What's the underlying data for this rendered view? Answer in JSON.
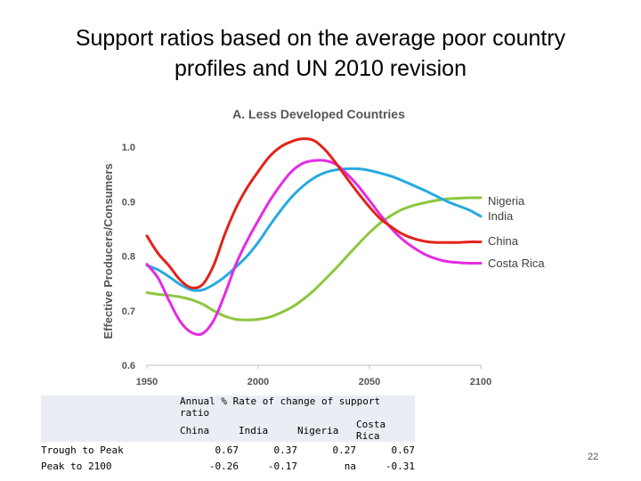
{
  "slide": {
    "title_line1": "Support ratios based on the average poor country",
    "title_line2": "profiles and UN 2010 revision",
    "page_number": "22"
  },
  "chart_data": {
    "type": "line",
    "title": "A.  Less Developed Countries",
    "xlabel": "",
    "ylabel": "Effective Producers/Consumers",
    "xlim": [
      1950,
      2100
    ],
    "ylim": [
      0.6,
      1.0
    ],
    "x_ticks": [
      "1950",
      "2000",
      "2050",
      "2100"
    ],
    "y_ticks": [
      "0.6",
      "0.7",
      "0.8",
      "0.9",
      "1.0"
    ],
    "grid": false,
    "legend": "line-end labels",
    "series": [
      {
        "name": "China",
        "color": "#e2231a",
        "points": [
          [
            1950,
            0.837
          ],
          [
            1955,
            0.805
          ],
          [
            1960,
            0.782
          ],
          [
            1965,
            0.756
          ],
          [
            1970,
            0.742
          ],
          [
            1975,
            0.748
          ],
          [
            1980,
            0.783
          ],
          [
            1985,
            0.84
          ],
          [
            1990,
            0.888
          ],
          [
            1995,
            0.925
          ],
          [
            2000,
            0.955
          ],
          [
            2005,
            0.982
          ],
          [
            2010,
            1.0
          ],
          [
            2015,
            1.01
          ],
          [
            2020,
            1.015
          ],
          [
            2025,
            1.012
          ],
          [
            2030,
            0.995
          ],
          [
            2035,
            0.97
          ],
          [
            2040,
            0.942
          ],
          [
            2045,
            0.915
          ],
          [
            2050,
            0.89
          ],
          [
            2055,
            0.868
          ],
          [
            2060,
            0.853
          ],
          [
            2065,
            0.84
          ],
          [
            2070,
            0.832
          ],
          [
            2075,
            0.827
          ],
          [
            2080,
            0.825
          ],
          [
            2085,
            0.825
          ],
          [
            2090,
            0.825
          ],
          [
            2095,
            0.826
          ],
          [
            2100,
            0.826
          ]
        ]
      },
      {
        "name": "India",
        "color": "#27aae1",
        "points": [
          [
            1950,
            0.783
          ],
          [
            1955,
            0.775
          ],
          [
            1960,
            0.762
          ],
          [
            1965,
            0.748
          ],
          [
            1970,
            0.738
          ],
          [
            1975,
            0.738
          ],
          [
            1980,
            0.748
          ],
          [
            1985,
            0.762
          ],
          [
            1990,
            0.78
          ],
          [
            1995,
            0.8
          ],
          [
            2000,
            0.825
          ],
          [
            2005,
            0.855
          ],
          [
            2010,
            0.883
          ],
          [
            2015,
            0.908
          ],
          [
            2020,
            0.928
          ],
          [
            2025,
            0.943
          ],
          [
            2030,
            0.953
          ],
          [
            2035,
            0.958
          ],
          [
            2040,
            0.96
          ],
          [
            2045,
            0.96
          ],
          [
            2050,
            0.957
          ],
          [
            2055,
            0.952
          ],
          [
            2060,
            0.946
          ],
          [
            2065,
            0.938
          ],
          [
            2070,
            0.929
          ],
          [
            2075,
            0.92
          ],
          [
            2080,
            0.91
          ],
          [
            2085,
            0.9
          ],
          [
            2090,
            0.892
          ],
          [
            2095,
            0.884
          ],
          [
            2100,
            0.873
          ]
        ]
      },
      {
        "name": "Nigeria",
        "color": "#8dc63f",
        "points": [
          [
            1950,
            0.733
          ],
          [
            1955,
            0.73
          ],
          [
            1960,
            0.728
          ],
          [
            1965,
            0.725
          ],
          [
            1970,
            0.72
          ],
          [
            1975,
            0.712
          ],
          [
            1980,
            0.7
          ],
          [
            1985,
            0.69
          ],
          [
            1990,
            0.684
          ],
          [
            1995,
            0.683
          ],
          [
            2000,
            0.684
          ],
          [
            2005,
            0.688
          ],
          [
            2010,
            0.696
          ],
          [
            2015,
            0.706
          ],
          [
            2020,
            0.72
          ],
          [
            2025,
            0.737
          ],
          [
            2030,
            0.757
          ],
          [
            2035,
            0.778
          ],
          [
            2040,
            0.8
          ],
          [
            2045,
            0.822
          ],
          [
            2050,
            0.843
          ],
          [
            2055,
            0.861
          ],
          [
            2060,
            0.875
          ],
          [
            2065,
            0.886
          ],
          [
            2070,
            0.893
          ],
          [
            2075,
            0.898
          ],
          [
            2080,
            0.902
          ],
          [
            2085,
            0.905
          ],
          [
            2090,
            0.906
          ],
          [
            2095,
            0.907
          ],
          [
            2100,
            0.907
          ]
        ]
      },
      {
        "name": "Costa Rica",
        "color": "#e52ae5",
        "points": [
          [
            1950,
            0.785
          ],
          [
            1955,
            0.76
          ],
          [
            1960,
            0.718
          ],
          [
            1965,
            0.68
          ],
          [
            1970,
            0.66
          ],
          [
            1975,
            0.658
          ],
          [
            1980,
            0.682
          ],
          [
            1985,
            0.73
          ],
          [
            1990,
            0.785
          ],
          [
            1995,
            0.828
          ],
          [
            2000,
            0.865
          ],
          [
            2005,
            0.9
          ],
          [
            2010,
            0.93
          ],
          [
            2015,
            0.955
          ],
          [
            2020,
            0.97
          ],
          [
            2025,
            0.975
          ],
          [
            2030,
            0.975
          ],
          [
            2035,
            0.968
          ],
          [
            2040,
            0.95
          ],
          [
            2045,
            0.928
          ],
          [
            2050,
            0.902
          ],
          [
            2055,
            0.875
          ],
          [
            2060,
            0.85
          ],
          [
            2065,
            0.83
          ],
          [
            2070,
            0.815
          ],
          [
            2075,
            0.803
          ],
          [
            2080,
            0.795
          ],
          [
            2085,
            0.79
          ],
          [
            2090,
            0.788
          ],
          [
            2095,
            0.787
          ],
          [
            2100,
            0.787
          ]
        ]
      }
    ]
  },
  "rate_table": {
    "caption": "Annual % Rate of change of support ratio",
    "columns": [
      "China",
      "India",
      "Nigeria",
      "Costa Rica"
    ],
    "rows": [
      {
        "label": "Trough to Peak",
        "values": [
          "0.67",
          "0.37",
          "0.27",
          "0.67"
        ]
      },
      {
        "label": "Peak to 2100",
        "values": [
          "-0.26",
          "-0.17",
          "na",
          "-0.31"
        ]
      }
    ]
  }
}
